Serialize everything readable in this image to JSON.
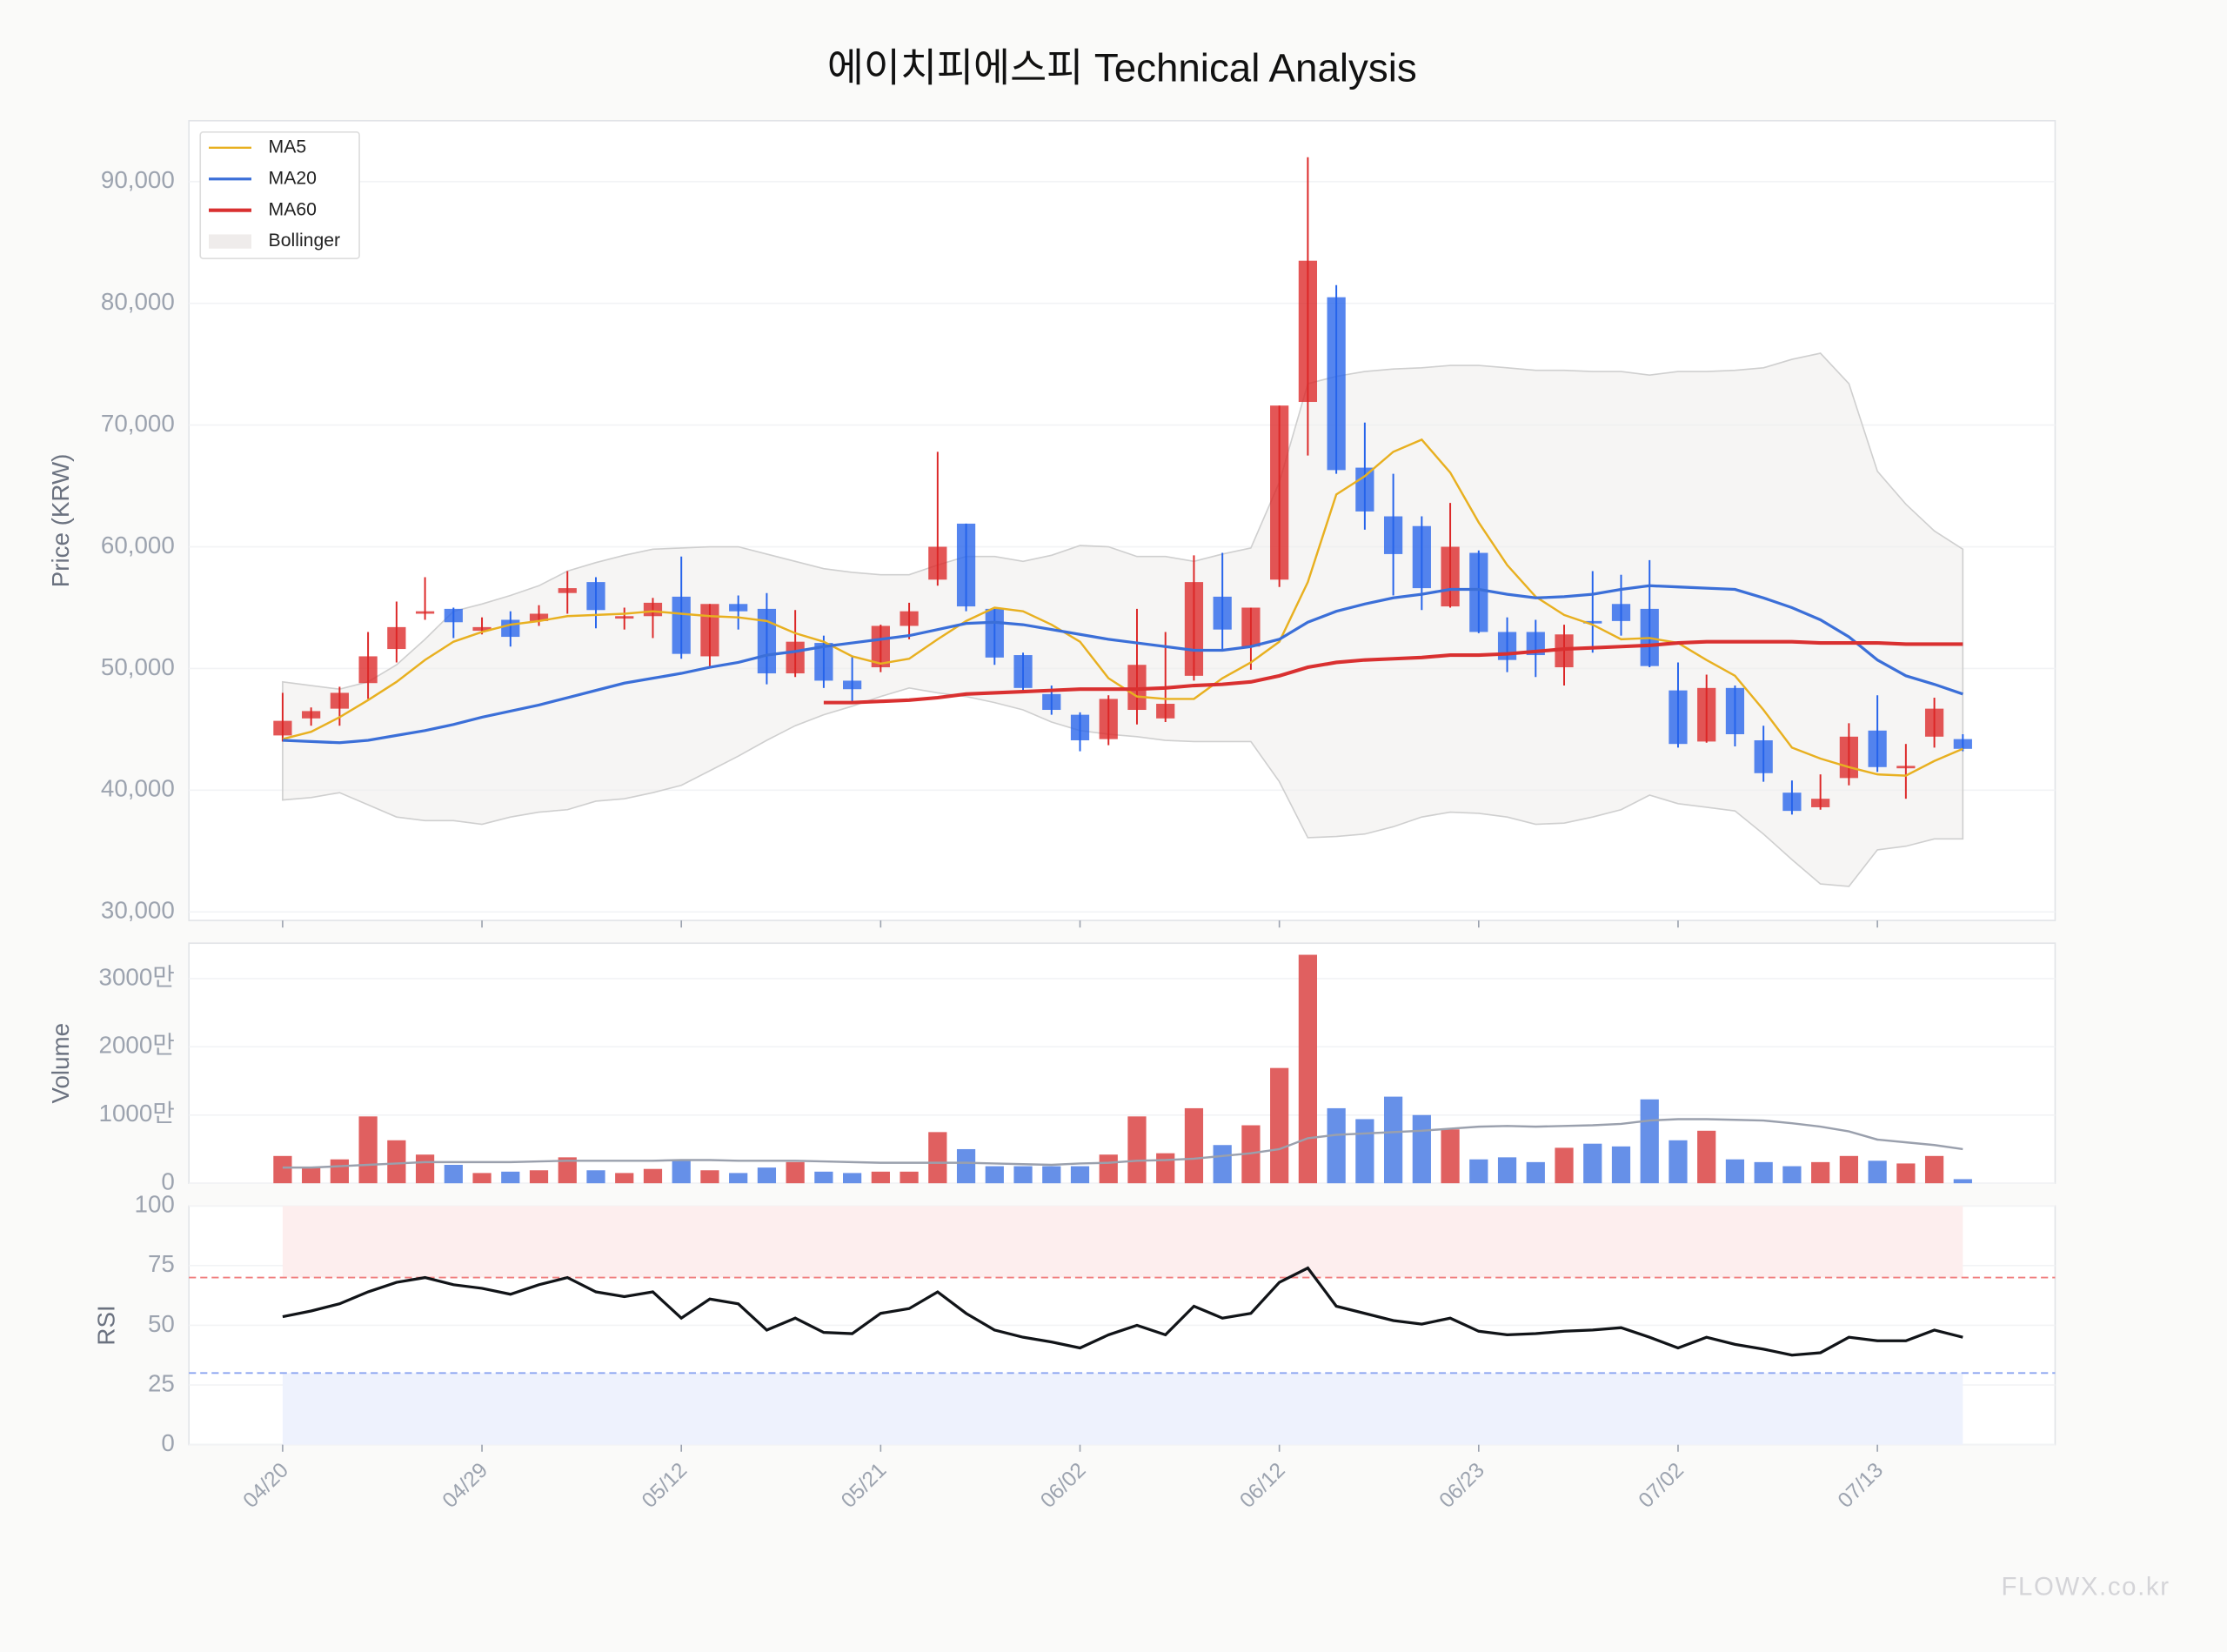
{
  "chart_data": [
    {
      "type": "candlestick",
      "title": "에이치피에스피 Technical Analysis",
      "y_label": "Price (KRW)",
      "categories": [
        "04/20",
        null,
        null,
        null,
        null,
        null,
        null,
        "04/29",
        null,
        null,
        null,
        null,
        null,
        null,
        "05/12",
        null,
        null,
        null,
        null,
        null,
        null,
        "05/21",
        null,
        null,
        null,
        null,
        null,
        null,
        "06/02",
        null,
        null,
        null,
        null,
        null,
        null,
        "06/12",
        null,
        null,
        null,
        null,
        null,
        null,
        "06/23",
        null,
        null,
        null,
        null,
        null,
        null,
        "07/02",
        null,
        null,
        null,
        null,
        null,
        null,
        "07/13",
        null,
        null,
        null
      ],
      "open": [
        44500,
        45900,
        46700,
        48800,
        51600,
        54500,
        54900,
        53100,
        54000,
        53900,
        56200,
        57100,
        54100,
        54300,
        55900,
        51000,
        55300,
        54900,
        49600,
        52100,
        49000,
        50100,
        53500,
        57300,
        61900,
        54900,
        51100,
        47900,
        46200,
        44200,
        46600,
        45900,
        49400,
        55900,
        51800,
        57300,
        71900,
        80500,
        66500,
        62500,
        61700,
        55100,
        59500,
        53000,
        53000,
        50100,
        53900,
        55300,
        54900,
        48200,
        44000,
        48400,
        44100,
        39800,
        38600,
        41000,
        44900,
        41800,
        44400,
        44200
      ],
      "high": [
        48000,
        46800,
        48500,
        53000,
        55500,
        57500,
        55000,
        54200,
        54700,
        55200,
        58000,
        57500,
        55000,
        55800,
        59200,
        55300,
        56000,
        56200,
        54800,
        52700,
        51000,
        53600,
        55400,
        67800,
        61900,
        54900,
        51300,
        48600,
        46400,
        47800,
        54900,
        53000,
        59300,
        59500,
        55000,
        71600,
        92000,
        81500,
        70200,
        66000,
        62500,
        63600,
        59700,
        54200,
        54000,
        53600,
        58000,
        57700,
        58900,
        50500,
        49500,
        48600,
        45300,
        40800,
        41300,
        45500,
        47800,
        43800,
        47600,
        44600
      ],
      "low": [
        44000,
        45300,
        45300,
        47500,
        50500,
        54000,
        52500,
        52800,
        51800,
        53500,
        54500,
        53300,
        53200,
        52500,
        50800,
        50200,
        53200,
        48700,
        49300,
        48400,
        47200,
        49700,
        52400,
        56800,
        54700,
        50300,
        48100,
        46200,
        43200,
        43700,
        45400,
        45600,
        49000,
        51600,
        49900,
        56700,
        67500,
        66000,
        61400,
        56000,
        54800,
        55000,
        52900,
        49700,
        49300,
        48600,
        51300,
        52700,
        50100,
        43500,
        43900,
        43600,
        40700,
        38000,
        38400,
        40400,
        41500,
        39300,
        43500,
        43200
      ],
      "close": [
        45700,
        46500,
        48000,
        51000,
        53400,
        54700,
        53800,
        53400,
        52600,
        54500,
        56600,
        54800,
        54300,
        55400,
        51200,
        55300,
        54700,
        49600,
        52200,
        49000,
        48300,
        53500,
        54700,
        60000,
        55100,
        50900,
        48400,
        46600,
        44100,
        47500,
        50300,
        47100,
        57100,
        53200,
        55000,
        71600,
        83500,
        66300,
        62900,
        59400,
        56600,
        60000,
        53000,
        50700,
        51100,
        52800,
        53700,
        53900,
        50200,
        43800,
        48400,
        44600,
        41400,
        38300,
        39300,
        44400,
        41900,
        42000,
        46700,
        43400
      ],
      "up_color": "#dc2626",
      "down_color": "#2563eb",
      "series": [
        {
          "name": "MA5",
          "color": "#e8b020",
          "width": 1.5,
          "values": [
            44200,
            44800,
            46000,
            47400,
            48900,
            50700,
            52200,
            53000,
            53600,
            53900,
            54300,
            54400,
            54500,
            54700,
            54500,
            54300,
            54200,
            53900,
            52900,
            52200,
            51000,
            50400,
            50800,
            52400,
            53900,
            55000,
            54700,
            53600,
            52200,
            49200,
            47700,
            47500,
            47500,
            49200,
            50500,
            52200,
            57100,
            64300,
            65800,
            67800,
            68800,
            66100,
            62000,
            58500,
            55900,
            54400,
            53600,
            52400,
            52500,
            52100,
            50700,
            49400,
            46600,
            43500,
            42600,
            41900,
            41300,
            41200,
            42400,
            43400
          ]
        },
        {
          "name": "MA20",
          "color": "#3b6fd8",
          "width": 2,
          "values": [
            44100,
            44000,
            43900,
            44100,
            44500,
            44900,
            45400,
            46000,
            46500,
            47000,
            47600,
            48200,
            48800,
            49200,
            49600,
            50100,
            50500,
            51100,
            51400,
            51800,
            52100,
            52400,
            52700,
            53200,
            53700,
            53800,
            53600,
            53200,
            52800,
            52400,
            52100,
            51800,
            51500,
            51500,
            51800,
            52400,
            53800,
            54700,
            55300,
            55800,
            56100,
            56500,
            56500,
            56100,
            55800,
            55900,
            56100,
            56500,
            56800,
            56700,
            56600,
            56500,
            55800,
            55000,
            54000,
            52600,
            50700,
            49400,
            48700,
            47900
          ]
        },
        {
          "name": "MA60",
          "color": "#d93030",
          "width": 2.5,
          "values": [
            null,
            null,
            null,
            null,
            null,
            null,
            null,
            null,
            null,
            null,
            null,
            null,
            null,
            null,
            null,
            null,
            null,
            null,
            null,
            47200,
            47200,
            47300,
            47400,
            47600,
            47900,
            48000,
            48100,
            48200,
            48300,
            48300,
            48300,
            48400,
            48600,
            48700,
            48900,
            49400,
            50100,
            50500,
            50700,
            50800,
            50900,
            51100,
            51100,
            51200,
            51400,
            51600,
            51700,
            51800,
            51900,
            52100,
            52200,
            52200,
            52200,
            52200,
            52100,
            52100,
            52100,
            52000,
            52000,
            52000
          ]
        }
      ],
      "bollinger": {
        "name": "Bollinger",
        "color": "#efeceb",
        "upper": [
          48900,
          48600,
          48300,
          48900,
          50300,
          52400,
          54700,
          55300,
          56000,
          56800,
          58000,
          58700,
          59300,
          59800,
          59900,
          60000,
          60000,
          59400,
          58800,
          58200,
          57900,
          57700,
          57700,
          58500,
          59200,
          59200,
          58800,
          59300,
          60100,
          60000,
          59200,
          59200,
          58800,
          59400,
          59900,
          65300,
          73400,
          74000,
          74400,
          74600,
          74700,
          74900,
          74900,
          74700,
          74500,
          74500,
          74400,
          74400,
          74100,
          74400,
          74400,
          74500,
          74700,
          75400,
          75900,
          73400,
          66200,
          63500,
          61300,
          59800
        ],
        "lower": [
          39200,
          39400,
          39800,
          38800,
          37800,
          37500,
          37500,
          37200,
          37800,
          38200,
          38400,
          39100,
          39300,
          39800,
          40400,
          41600,
          42800,
          44100,
          45300,
          46200,
          46900,
          47700,
          48400,
          48000,
          47700,
          47200,
          46600,
          45600,
          44900,
          44600,
          44400,
          44100,
          44000,
          44000,
          44000,
          40700,
          36100,
          36200,
          36400,
          37000,
          37800,
          38200,
          38100,
          37800,
          37200,
          37300,
          37800,
          38400,
          39600,
          38900,
          38600,
          38300,
          36400,
          34300,
          32300,
          32100,
          35100,
          35400,
          36000,
          36000
        ]
      },
      "ylim": [
        29300,
        95000
      ],
      "yticks": [
        {
          "value": 30000,
          "label": "30,000"
        },
        {
          "value": 40000,
          "label": "40,000"
        },
        {
          "value": 50000,
          "label": "50,000"
        },
        {
          "value": 60000,
          "label": "60,000"
        },
        {
          "value": 70000,
          "label": "70,000"
        },
        {
          "value": 80000,
          "label": "80,000"
        },
        {
          "value": 90000,
          "label": "90,000"
        }
      ],
      "grid": true,
      "legend": "upper left"
    },
    {
      "type": "bar",
      "y_label": "Volume",
      "values": [
        4000000,
        2300000,
        3500000,
        9800000,
        6300000,
        4200000,
        2700000,
        1500000,
        1700000,
        1900000,
        3800000,
        1900000,
        1500000,
        2100000,
        3300000,
        1900000,
        1500000,
        2300000,
        3100000,
        1700000,
        1500000,
        1700000,
        1700000,
        7500000,
        5000000,
        2500000,
        2500000,
        2500000,
        2500000,
        4200000,
        9800000,
        4400000,
        11000000,
        5600000,
        8500000,
        16900000,
        33500000,
        11000000,
        9400000,
        12700000,
        10000000,
        7900000,
        3500000,
        3800000,
        3100000,
        5200000,
        5800000,
        5400000,
        12300000,
        6300000,
        7700000,
        3500000,
        3100000,
        2500000,
        3100000,
        4000000,
        3300000,
        2900000,
        4000000,
        600000
      ],
      "up_color": "#e06060",
      "down_color": "#6690e8",
      "series": [
        {
          "color": "#9aa0ad",
          "values": [
            2300000,
            2300000,
            2500000,
            2700000,
            2900000,
            3100000,
            3100000,
            3100000,
            3100000,
            3200000,
            3300000,
            3300000,
            3300000,
            3300000,
            3400000,
            3400000,
            3300000,
            3300000,
            3300000,
            3200000,
            3100000,
            3000000,
            3000000,
            3000000,
            3000000,
            2900000,
            2800000,
            2700000,
            2900000,
            3000000,
            3300000,
            3400000,
            3600000,
            4000000,
            4400000,
            5000000,
            6600000,
            7100000,
            7300000,
            7500000,
            7700000,
            8000000,
            8300000,
            8400000,
            8300000,
            8400000,
            8500000,
            8700000,
            9200000,
            9400000,
            9400000,
            9300000,
            9200000,
            8800000,
            8300000,
            7600000,
            6400000,
            6000000,
            5600000,
            5000000
          ]
        }
      ],
      "ylim": [
        0,
        35200000
      ],
      "yticks": [
        0,
        {
          "value": 10000000,
          "label": "1000만"
        },
        {
          "value": 20000000,
          "label": "2000만"
        },
        {
          "value": 30000000,
          "label": "3000만"
        }
      ],
      "grid": true
    },
    {
      "type": "line",
      "y_label": "RSI",
      "color": "#111418",
      "values": [
        53.6,
        56,
        59,
        64,
        68,
        70,
        67,
        65.5,
        63,
        67,
        70,
        64,
        62,
        64,
        53,
        61,
        59,
        48,
        53,
        47,
        46.5,
        55,
        57,
        64,
        55,
        48,
        45,
        43,
        40.5,
        46,
        50,
        46,
        58,
        53,
        55,
        68,
        74,
        58,
        55,
        52,
        50.5,
        53,
        47.5,
        46,
        46.5,
        47.5,
        48,
        49,
        45,
        40.5,
        45,
        42,
        40,
        37.5,
        38.5,
        45,
        43.5,
        43.5,
        48,
        45
      ],
      "reference_lines": [
        {
          "value": 70,
          "color": "#f08080",
          "fill": "#fdeeee"
        },
        {
          "value": 30,
          "color": "#8aa4f0",
          "fill": "#eef2fd"
        }
      ],
      "ylim": [
        0,
        100
      ],
      "yticks": [
        0,
        25,
        50,
        75,
        100
      ],
      "grid": true
    }
  ],
  "watermark": "FLOWX.co.kr"
}
